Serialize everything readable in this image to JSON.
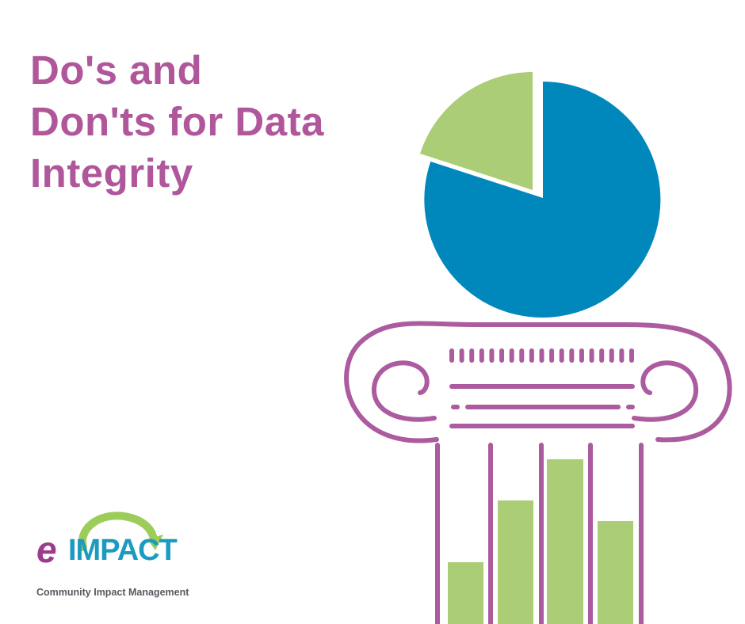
{
  "title": {
    "line1": "Do's and",
    "line2": "Don'ts for Data",
    "line3": "Integrity"
  },
  "logo": {
    "prefix": "e",
    "name": "IMPACT",
    "tagline": "Community Impact Management"
  },
  "colors": {
    "title": "#b0579c",
    "pie_main": "#0088bd",
    "pie_slice": "#abcd75",
    "bars": "#abcd75",
    "column_outline": "#ac5b9f",
    "logo_purple": "#9b3b8e",
    "logo_blue": "#1b9bc0",
    "logo_green": "#9ccc5a"
  },
  "illustration": {
    "pie_slice_fraction": 0.2,
    "bar_levels": [
      0.3,
      0.6,
      0.8,
      0.5
    ]
  }
}
